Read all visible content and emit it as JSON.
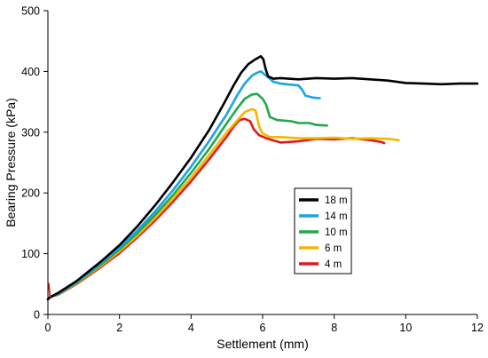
{
  "chart_data": {
    "type": "line",
    "title": "",
    "xlabel": "Settlement (mm)",
    "ylabel": "Bearing Pressure (kPa)",
    "xlim": [
      0,
      12
    ],
    "ylim": [
      0,
      500
    ],
    "xticks": [
      "0",
      "2",
      "4",
      "6",
      "8",
      "10",
      "12"
    ],
    "yticks": [
      "0",
      "100",
      "200",
      "300",
      "400",
      "500"
    ],
    "grid": false,
    "legend_position": "center-right",
    "series": [
      {
        "name": "18 m",
        "color": "#000000",
        "points": [
          [
            0,
            25
          ],
          [
            0.05,
            28
          ],
          [
            0.3,
            36
          ],
          [
            0.8,
            55
          ],
          [
            1.5,
            88
          ],
          [
            2.0,
            114
          ],
          [
            2.5,
            145
          ],
          [
            3.0,
            180
          ],
          [
            3.5,
            218
          ],
          [
            4.0,
            258
          ],
          [
            4.5,
            303
          ],
          [
            4.9,
            345
          ],
          [
            5.2,
            378
          ],
          [
            5.4,
            398
          ],
          [
            5.6,
            412
          ],
          [
            5.8,
            420
          ],
          [
            5.95,
            425
          ],
          [
            6.02,
            420
          ],
          [
            6.08,
            405
          ],
          [
            6.15,
            392
          ],
          [
            6.3,
            388
          ],
          [
            6.5,
            389
          ],
          [
            7.0,
            387
          ],
          [
            7.5,
            389
          ],
          [
            8.0,
            388
          ],
          [
            8.5,
            389
          ],
          [
            9.0,
            387
          ],
          [
            9.5,
            385
          ],
          [
            10.0,
            381
          ],
          [
            10.5,
            380
          ],
          [
            11.0,
            379
          ],
          [
            11.5,
            380
          ],
          [
            12.0,
            380
          ]
        ]
      },
      {
        "name": "14 m",
        "color": "#1aa3e8",
        "points": [
          [
            0,
            25
          ],
          [
            0.05,
            28
          ],
          [
            0.3,
            35
          ],
          [
            0.8,
            53
          ],
          [
            1.5,
            85
          ],
          [
            2.0,
            110
          ],
          [
            2.5,
            138
          ],
          [
            3.0,
            170
          ],
          [
            3.5,
            205
          ],
          [
            4.0,
            243
          ],
          [
            4.5,
            285
          ],
          [
            5.0,
            330
          ],
          [
            5.3,
            362
          ],
          [
            5.5,
            380
          ],
          [
            5.7,
            393
          ],
          [
            5.85,
            398
          ],
          [
            5.95,
            400
          ],
          [
            6.1,
            393
          ],
          [
            6.3,
            383
          ],
          [
            6.5,
            380
          ],
          [
            6.8,
            378
          ],
          [
            7.0,
            377
          ],
          [
            7.1,
            370
          ],
          [
            7.2,
            360
          ],
          [
            7.4,
            357
          ],
          [
            7.6,
            356
          ]
        ]
      },
      {
        "name": "10 m",
        "color": "#22a84a",
        "points": [
          [
            0,
            25
          ],
          [
            0.05,
            28
          ],
          [
            0.3,
            34
          ],
          [
            0.8,
            52
          ],
          [
            1.5,
            83
          ],
          [
            2.0,
            107
          ],
          [
            2.5,
            134
          ],
          [
            3.0,
            164
          ],
          [
            3.5,
            197
          ],
          [
            4.0,
            233
          ],
          [
            4.5,
            272
          ],
          [
            5.0,
            315
          ],
          [
            5.3,
            340
          ],
          [
            5.5,
            355
          ],
          [
            5.7,
            362
          ],
          [
            5.85,
            363
          ],
          [
            6.0,
            355
          ],
          [
            6.1,
            345
          ],
          [
            6.2,
            325
          ],
          [
            6.4,
            320
          ],
          [
            6.8,
            318
          ],
          [
            7.0,
            315
          ],
          [
            7.3,
            315
          ],
          [
            7.5,
            312
          ],
          [
            7.8,
            311
          ]
        ]
      },
      {
        "name": "6 m",
        "color": "#f2b800",
        "points": [
          [
            0,
            25
          ],
          [
            0.05,
            28
          ],
          [
            0.3,
            34
          ],
          [
            0.8,
            51
          ],
          [
            1.5,
            81
          ],
          [
            2.0,
            104
          ],
          [
            2.5,
            130
          ],
          [
            3.0,
            159
          ],
          [
            3.5,
            191
          ],
          [
            4.0,
            225
          ],
          [
            4.5,
            262
          ],
          [
            5.0,
            300
          ],
          [
            5.3,
            320
          ],
          [
            5.5,
            333
          ],
          [
            5.7,
            338
          ],
          [
            5.8,
            336
          ],
          [
            5.9,
            310
          ],
          [
            6.0,
            298
          ],
          [
            6.2,
            292
          ],
          [
            6.5,
            292
          ],
          [
            7.0,
            290
          ],
          [
            7.5,
            290
          ],
          [
            8.0,
            291
          ],
          [
            8.5,
            289
          ],
          [
            9.0,
            290
          ],
          [
            9.5,
            289
          ],
          [
            9.8,
            287
          ]
        ]
      },
      {
        "name": "4 m",
        "color": "#e3191c",
        "points": [
          [
            0,
            25
          ],
          [
            0.05,
            28
          ],
          [
            0.3,
            33
          ],
          [
            0.8,
            50
          ],
          [
            1.5,
            79
          ],
          [
            2.0,
            101
          ],
          [
            2.5,
            127
          ],
          [
            3.0,
            155
          ],
          [
            3.5,
            186
          ],
          [
            4.0,
            219
          ],
          [
            4.5,
            255
          ],
          [
            5.0,
            293
          ],
          [
            5.2,
            310
          ],
          [
            5.35,
            320
          ],
          [
            5.5,
            322
          ],
          [
            5.65,
            318
          ],
          [
            5.75,
            305
          ],
          [
            5.9,
            295
          ],
          [
            6.1,
            290
          ],
          [
            6.5,
            283
          ],
          [
            7.0,
            285
          ],
          [
            7.5,
            289
          ],
          [
            8.0,
            288
          ],
          [
            8.5,
            290
          ],
          [
            9.0,
            287
          ],
          [
            9.3,
            284
          ],
          [
            9.4,
            282
          ]
        ]
      }
    ]
  }
}
